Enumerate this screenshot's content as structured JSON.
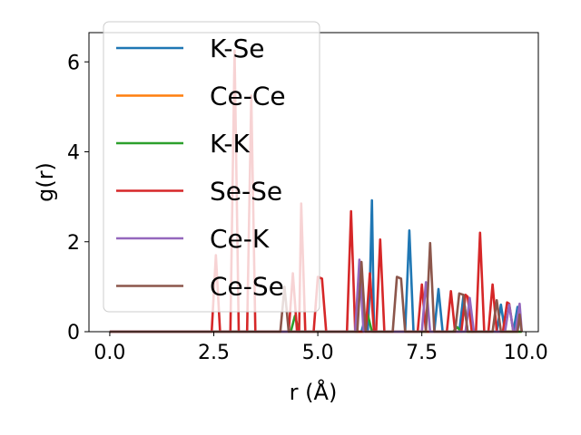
{
  "chart_data": {
    "type": "line",
    "xlabel": "r (Å)",
    "ylabel": "g(r)",
    "xlim": [
      -0.5,
      10.3
    ],
    "ylim": [
      0,
      6.65
    ],
    "xticks": [
      "0.0",
      "2.5",
      "5.0",
      "7.5",
      "10.0"
    ],
    "yticks": [
      "0",
      "2",
      "4",
      "6"
    ],
    "grid": false,
    "legend_position": "upper-left",
    "series": [
      {
        "name": "K-Se",
        "color": "#1f77b4",
        "points": [
          [
            0,
            0
          ],
          [
            6.05,
            0
          ],
          [
            6.15,
            0.35
          ],
          [
            6.2,
            0
          ],
          [
            6.25,
            1.0
          ],
          [
            6.3,
            2.92
          ],
          [
            6.35,
            0
          ],
          [
            7.1,
            0
          ],
          [
            7.2,
            2.25
          ],
          [
            7.3,
            0
          ],
          [
            7.8,
            0
          ],
          [
            7.9,
            0.95
          ],
          [
            8.0,
            0
          ],
          [
            8.4,
            0
          ],
          [
            8.5,
            0.8
          ],
          [
            8.6,
            0
          ],
          [
            9.3,
            0
          ],
          [
            9.4,
            0.6
          ],
          [
            9.5,
            0
          ],
          [
            9.7,
            0
          ],
          [
            9.8,
            0.55
          ],
          [
            9.9,
            0
          ]
        ]
      },
      {
        "name": "Ce-Ce",
        "color": "#ff7f0e",
        "points": [
          [
            0,
            0
          ],
          [
            9.9,
            0
          ]
        ]
      },
      {
        "name": "K-K",
        "color": "#2ca02c",
        "points": [
          [
            0,
            0
          ],
          [
            4.35,
            0
          ],
          [
            4.45,
            0.35
          ],
          [
            4.55,
            0
          ],
          [
            6.1,
            0
          ],
          [
            6.2,
            0.38
          ],
          [
            6.3,
            0
          ],
          [
            8.25,
            0
          ],
          [
            8.35,
            0.1
          ],
          [
            8.45,
            0
          ],
          [
            9.9,
            0
          ]
        ]
      },
      {
        "name": "Se-Se",
        "color": "#d62728",
        "points": [
          [
            0,
            0
          ],
          [
            2.45,
            0
          ],
          [
            2.55,
            1.7
          ],
          [
            2.65,
            0
          ],
          [
            2.9,
            0
          ],
          [
            3.0,
            6.25
          ],
          [
            3.1,
            0
          ],
          [
            3.3,
            0
          ],
          [
            3.4,
            5.25
          ],
          [
            3.5,
            0
          ],
          [
            4.3,
            0
          ],
          [
            4.4,
            1.3
          ],
          [
            4.5,
            0
          ],
          [
            4.55,
            0
          ],
          [
            4.6,
            2.85
          ],
          [
            4.7,
            0
          ],
          [
            4.9,
            0
          ],
          [
            5.0,
            1.22
          ],
          [
            5.1,
            1.18
          ],
          [
            5.2,
            0
          ],
          [
            5.7,
            0
          ],
          [
            5.8,
            2.68
          ],
          [
            5.9,
            0
          ],
          [
            6.15,
            0
          ],
          [
            6.25,
            1.3
          ],
          [
            6.35,
            0
          ],
          [
            6.4,
            0
          ],
          [
            6.5,
            2.05
          ],
          [
            6.6,
            0
          ],
          [
            7.4,
            0
          ],
          [
            7.5,
            1.05
          ],
          [
            7.6,
            0
          ],
          [
            8.1,
            0
          ],
          [
            8.2,
            0.9
          ],
          [
            8.3,
            0
          ],
          [
            8.45,
            0
          ],
          [
            8.55,
            0.82
          ],
          [
            8.6,
            0.78
          ],
          [
            8.7,
            0
          ],
          [
            8.8,
            0
          ],
          [
            8.9,
            2.2
          ],
          [
            9.0,
            0
          ],
          [
            9.1,
            0
          ],
          [
            9.2,
            1.05
          ],
          [
            9.3,
            0
          ],
          [
            9.45,
            0
          ],
          [
            9.55,
            0.65
          ],
          [
            9.6,
            0.62
          ],
          [
            9.7,
            0
          ]
        ]
      },
      {
        "name": "Ce-K",
        "color": "#9467bd",
        "points": [
          [
            0,
            0
          ],
          [
            5.9,
            0
          ],
          [
            6.0,
            1.6
          ],
          [
            6.1,
            0
          ],
          [
            7.5,
            0
          ],
          [
            7.6,
            1.1
          ],
          [
            7.7,
            0
          ],
          [
            8.55,
            0
          ],
          [
            8.65,
            0.75
          ],
          [
            8.75,
            0
          ],
          [
            9.5,
            0
          ],
          [
            9.6,
            0.6
          ],
          [
            9.7,
            0
          ],
          [
            9.75,
            0
          ],
          [
            9.85,
            0.62
          ],
          [
            9.9,
            0
          ]
        ]
      },
      {
        "name": "Ce-Se",
        "color": "#8c564b",
        "points": [
          [
            0,
            0
          ],
          [
            4.1,
            0
          ],
          [
            4.2,
            1.0
          ],
          [
            4.3,
            0
          ],
          [
            5.95,
            0
          ],
          [
            6.05,
            1.55
          ],
          [
            6.15,
            0
          ],
          [
            6.8,
            0
          ],
          [
            6.9,
            1.22
          ],
          [
            7.0,
            1.18
          ],
          [
            7.1,
            0
          ],
          [
            7.6,
            0
          ],
          [
            7.7,
            1.97
          ],
          [
            7.8,
            0
          ],
          [
            8.3,
            0
          ],
          [
            8.4,
            0.85
          ],
          [
            8.5,
            0.82
          ],
          [
            8.6,
            0
          ],
          [
            9.2,
            0
          ],
          [
            9.3,
            0.7
          ],
          [
            9.4,
            0
          ],
          [
            9.8,
            0
          ],
          [
            9.85,
            0.38
          ],
          [
            9.9,
            0
          ]
        ]
      }
    ]
  }
}
